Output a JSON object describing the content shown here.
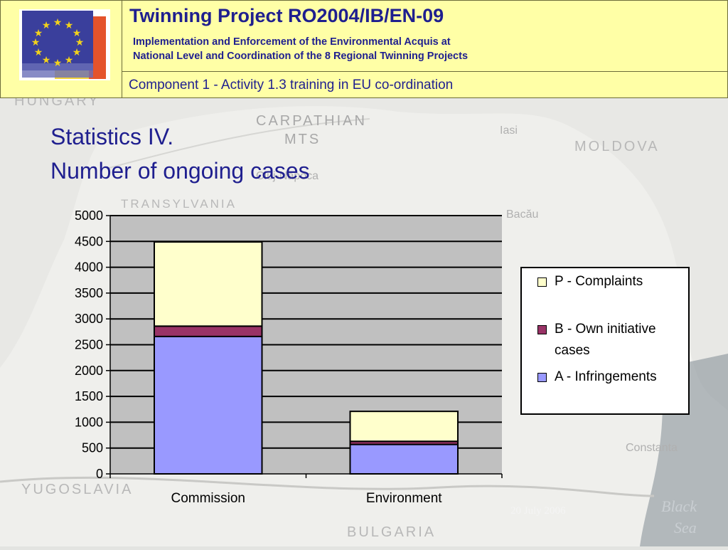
{
  "header": {
    "title": "Twinning Project RO2004/IB/EN-09",
    "subtitle_line1": "Implementation and Enforcement of the Environmental Acquis at",
    "subtitle_line2": "National Level and Coordination of the 8 Regional Twinning Projects",
    "component": "Component 1 - Activity 1.3 training in EU co-ordination"
  },
  "slide": {
    "title_line1": "Statistics IV.",
    "title_line2": "Number of ongoing cases"
  },
  "map_labels": {
    "hungary": "HUNGARY",
    "carpathian": "CARPATHIAN",
    "mts": "MTS",
    "transylvania": "TRANSYLVANIA",
    "moldova": "MOLDOVA",
    "iasi": "Iasi",
    "bacau": "Bacău",
    "cluj": "Cluj-Napoca",
    "constanta": "Constanta",
    "yugoslavia": "YUGOSLAVIA",
    "bulgaria": "BULGARIA",
    "black_sea_1": "Black",
    "black_sea_2": "Sea"
  },
  "footer": {
    "date": "20 July 2006"
  },
  "colors": {
    "title": "#1f1f8f",
    "header_bg": "#ffffa6",
    "plot_bg": "#c0c0c0",
    "series_a": "#9999ff",
    "series_b": "#993366",
    "series_p": "#ffffcc"
  },
  "chart_data": {
    "type": "bar",
    "stacked": true,
    "categories": [
      "Commission",
      "Environment"
    ],
    "series": [
      {
        "name": "A - Infringements",
        "values": [
          2660,
          570
        ],
        "color": "#9999ff"
      },
      {
        "name": "B - Own initiative cases",
        "values": [
          200,
          60
        ],
        "color": "#993366"
      },
      {
        "name": "P - Complaints",
        "values": [
          1630,
          580
        ],
        "color": "#ffffcc"
      }
    ],
    "legend_order": [
      "P - Complaints",
      "B - Own initiative cases",
      "A - Infringements"
    ],
    "yticks": [
      "0",
      "500",
      "1000",
      "1500",
      "2000",
      "2500",
      "3000",
      "3500",
      "4000",
      "4500",
      "5000"
    ],
    "ylim": [
      0,
      5000
    ],
    "grid": true,
    "legend_position": "right",
    "title": "",
    "xlabel": "",
    "ylabel": ""
  }
}
